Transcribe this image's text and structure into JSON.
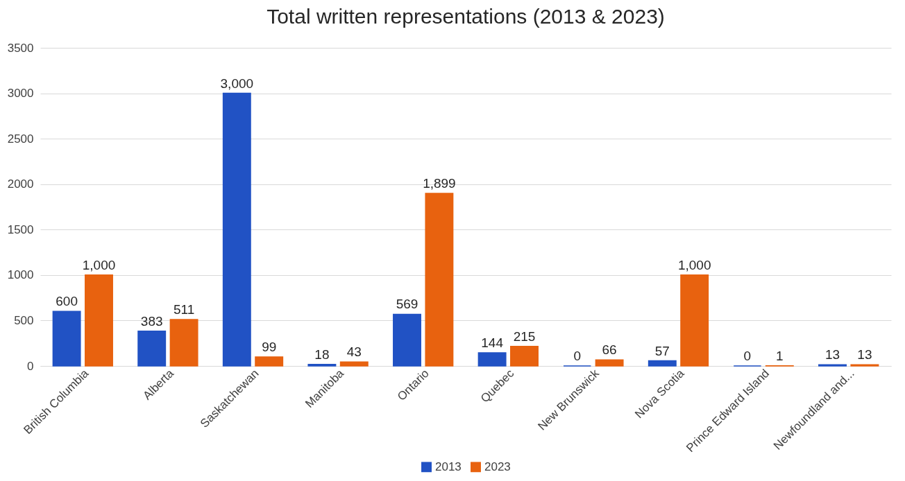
{
  "chart_data": {
    "type": "bar",
    "title": "Total written representations (2013 & 2023)",
    "categories": [
      "British Columbia",
      "Alberta",
      "Saskatchewan",
      "Manitoba",
      "Ontario",
      "Quebec",
      "New Brunswick",
      "Nova Scotia",
      "Prince Edward Island",
      "Newfoundland and..."
    ],
    "series": [
      {
        "name": "2013",
        "color": "#2152c4",
        "values": [
          600,
          383,
          3000,
          18,
          569,
          144,
          0,
          57,
          0,
          13
        ],
        "value_labels": [
          "600",
          "383",
          "3,000",
          "18",
          "569",
          "144",
          "0",
          "57",
          "0",
          "13"
        ]
      },
      {
        "name": "2023",
        "color": "#e8620f",
        "values": [
          1000,
          511,
          99,
          43,
          1899,
          215,
          66,
          1000,
          1,
          13
        ],
        "value_labels": [
          "1,000",
          "511",
          "99",
          "43",
          "1,899",
          "215",
          "66",
          "1,000",
          "1",
          "13"
        ]
      }
    ],
    "ylim": [
      0,
      3500
    ],
    "yticks": [
      0,
      500,
      1000,
      1500,
      2000,
      2500,
      3000,
      3500
    ],
    "grid": "y",
    "legend": "bottom"
  }
}
